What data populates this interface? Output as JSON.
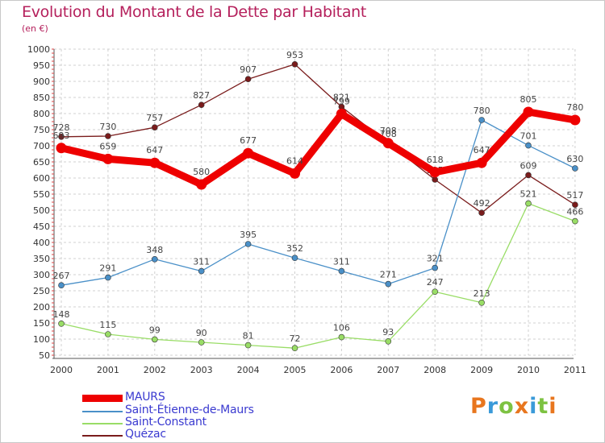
{
  "title": "Evolution du Montant de la Dette par Habitant",
  "subtitle": "(en €)",
  "colors": {
    "title": "#b5205c",
    "legend_text": "#3a3ad0",
    "grid": "#d0d0d0",
    "axis_text": "#333333"
  },
  "logo": {
    "letters": [
      "P",
      "r",
      "o",
      "x",
      "i",
      "t",
      "i"
    ],
    "colors": [
      "#e8761e",
      "#3a9ad9",
      "#7dc242",
      "#e8761e",
      "#3a9ad9",
      "#7dc242",
      "#e8761e"
    ]
  },
  "chart_data": {
    "type": "line",
    "title": "Evolution du Montant de la Dette par Habitant",
    "subtitle": "(en €)",
    "xlabel": "",
    "ylabel": "",
    "x": [
      "2000",
      "2001",
      "2002",
      "2003",
      "2004",
      "2005",
      "2006",
      "2007",
      "2008",
      "2009",
      "2010",
      "2011"
    ],
    "ylim": [
      50,
      1000
    ],
    "yticks": [
      50,
      100,
      150,
      200,
      250,
      300,
      350,
      400,
      450,
      500,
      550,
      600,
      650,
      700,
      750,
      800,
      850,
      900,
      950,
      1000
    ],
    "grid": true,
    "legend_position": "bottom-left",
    "series": [
      {
        "name": "Quézac",
        "color": "#7a1c1c",
        "values": [
          728,
          730,
          757,
          827,
          907,
          953,
          821,
          708,
          595,
          492,
          609,
          517
        ],
        "labels": [
          "728",
          "730",
          "757",
          "827",
          "907",
          "953",
          "821",
          "708",
          "595",
          "492",
          "609",
          "517"
        ]
      },
      {
        "name": "Saint-Étienne-de-Maurs",
        "color": "#4a90c8",
        "values": [
          267,
          291,
          348,
          311,
          395,
          352,
          311,
          271,
          321,
          780,
          701,
          630
        ],
        "labels": [
          "267",
          "291",
          "348",
          "311",
          "395",
          "352",
          "311",
          "271",
          "321",
          "780",
          "701",
          "630"
        ]
      },
      {
        "name": "Saint-Constant",
        "color": "#99dd66",
        "values": [
          148,
          115,
          99,
          90,
          81,
          72,
          106,
          93,
          247,
          213,
          521,
          466
        ],
        "labels": [
          "148",
          "115",
          "99",
          "90",
          "81",
          "72",
          "106",
          "93",
          "247",
          "213",
          "521",
          "466"
        ]
      },
      {
        "name": "MAURS",
        "color": "#ee0000",
        "values": [
          693,
          659,
          647,
          580,
          677,
          614,
          799,
          708,
          618,
          647,
          805,
          780
        ],
        "labels": [
          "693",
          "659",
          "647",
          "580",
          "677",
          "614",
          "799",
          "708",
          "618",
          "647",
          "805",
          "780"
        ]
      }
    ],
    "legend": [
      {
        "name": "MAURS",
        "color": "#ee0000"
      },
      {
        "name": "Saint-Étienne-de-Maurs",
        "color": "#4a90c8"
      },
      {
        "name": "Saint-Constant",
        "color": "#99dd66"
      },
      {
        "name": "Quézac",
        "color": "#7a1c1c"
      }
    ]
  }
}
